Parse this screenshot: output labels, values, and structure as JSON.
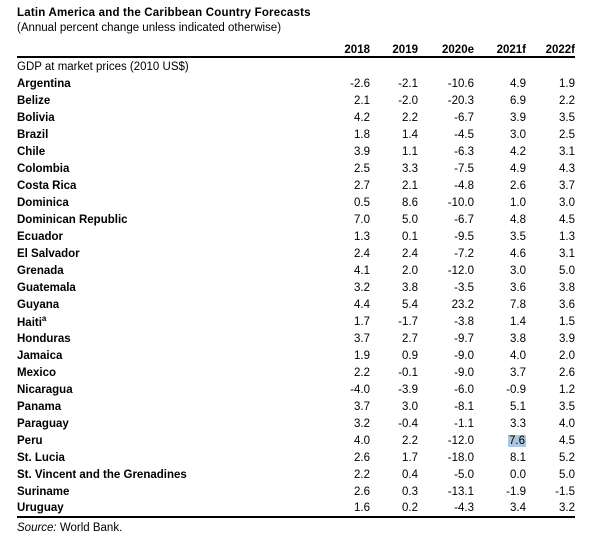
{
  "header": {
    "title": "Latin America and the Caribbean Country Forecasts",
    "subtitle": "(Annual percent change unless indicated otherwise)"
  },
  "table": {
    "columns": [
      "2018",
      "2019",
      "2020e",
      "2021f",
      "2022f"
    ],
    "section_label": "GDP at market prices (2010 US$)",
    "highlight_color": "#abc8e0",
    "rows": [
      {
        "country": "Argentina",
        "values": [
          "-2.6",
          "-2.1",
          "-10.6",
          "4.9",
          "1.9"
        ]
      },
      {
        "country": "Belize",
        "values": [
          "2.1",
          "-2.0",
          "-20.3",
          "6.9",
          "2.2"
        ]
      },
      {
        "country": "Bolivia",
        "values": [
          "4.2",
          "2.2",
          "-6.7",
          "3.9",
          "3.5"
        ]
      },
      {
        "country": "Brazil",
        "values": [
          "1.8",
          "1.4",
          "-4.5",
          "3.0",
          "2.5"
        ]
      },
      {
        "country": "Chile",
        "values": [
          "3.9",
          "1.1",
          "-6.3",
          "4.2",
          "3.1"
        ]
      },
      {
        "country": "Colombia",
        "values": [
          "2.5",
          "3.3",
          "-7.5",
          "4.9",
          "4.3"
        ]
      },
      {
        "country": "Costa Rica",
        "values": [
          "2.7",
          "2.1",
          "-4.8",
          "2.6",
          "3.7"
        ]
      },
      {
        "country": "Dominica",
        "values": [
          "0.5",
          "8.6",
          "-10.0",
          "1.0",
          "3.0"
        ]
      },
      {
        "country": "Dominican Republic",
        "values": [
          "7.0",
          "5.0",
          "-6.7",
          "4.8",
          "4.5"
        ]
      },
      {
        "country": "Ecuador",
        "values": [
          "1.3",
          "0.1",
          "-9.5",
          "3.5",
          "1.3"
        ]
      },
      {
        "country": "El Salvador",
        "values": [
          "2.4",
          "2.4",
          "-7.2",
          "4.6",
          "3.1"
        ]
      },
      {
        "country": "Grenada",
        "values": [
          "4.1",
          "2.0",
          "-12.0",
          "3.0",
          "5.0"
        ]
      },
      {
        "country": "Guatemala",
        "values": [
          "3.2",
          "3.8",
          "-3.5",
          "3.6",
          "3.8"
        ]
      },
      {
        "country": "Guyana",
        "values": [
          "4.4",
          "5.4",
          "23.2",
          "7.8",
          "3.6"
        ]
      },
      {
        "country": "Haiti",
        "sup": "a",
        "values": [
          "1.7",
          "-1.7",
          "-3.8",
          "1.4",
          "1.5"
        ]
      },
      {
        "country": "Honduras",
        "values": [
          "3.7",
          "2.7",
          "-9.7",
          "3.8",
          "3.9"
        ]
      },
      {
        "country": "Jamaica",
        "values": [
          "1.9",
          "0.9",
          "-9.0",
          "4.0",
          "2.0"
        ]
      },
      {
        "country": "Mexico",
        "values": [
          "2.2",
          "-0.1",
          "-9.0",
          "3.7",
          "2.6"
        ]
      },
      {
        "country": "Nicaragua",
        "values": [
          "-4.0",
          "-3.9",
          "-6.0",
          "-0.9",
          "1.2"
        ]
      },
      {
        "country": "Panama",
        "values": [
          "3.7",
          "3.0",
          "-8.1",
          "5.1",
          "3.5"
        ]
      },
      {
        "country": "Paraguay",
        "values": [
          "3.2",
          "-0.4",
          "-1.1",
          "3.3",
          "4.0"
        ]
      },
      {
        "country": "Peru",
        "values": [
          "4.0",
          "2.2",
          "-12.0",
          "7.6",
          "4.5"
        ],
        "highlight": 3
      },
      {
        "country": "St. Lucia",
        "values": [
          "2.6",
          "1.7",
          "-18.0",
          "8.1",
          "5.2"
        ]
      },
      {
        "country": "St. Vincent and the Grenadines",
        "values": [
          "2.2",
          "0.4",
          "-5.0",
          "0.0",
          "5.0"
        ]
      },
      {
        "country": "Suriname",
        "values": [
          "2.6",
          "0.3",
          "-13.1",
          "-1.9",
          "-1.5"
        ]
      },
      {
        "country": "Uruguay",
        "values": [
          "1.6",
          "0.2",
          "-4.3",
          "3.4",
          "3.2"
        ]
      }
    ]
  },
  "footer": {
    "source_label": "Source:",
    "source_text": "World Bank."
  }
}
